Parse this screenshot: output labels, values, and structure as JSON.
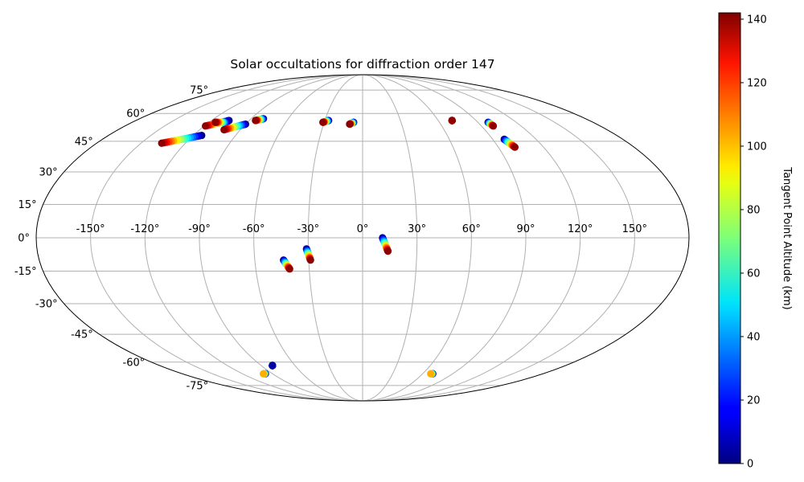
{
  "chart_data": {
    "type": "scatter",
    "projection": "mollweide",
    "title": "Solar occultations for diffraction order 147",
    "grid": true,
    "longitude_ticks": [
      "-150°",
      "-120°",
      "-90°",
      "-60°",
      "-30°",
      "0°",
      "30°",
      "60°",
      "90°",
      "120°",
      "150°"
    ],
    "latitude_ticks": [
      "75°",
      "60°",
      "45°",
      "30°",
      "15°",
      "0°",
      "-15°",
      "-30°",
      "-45°",
      "-60°",
      "-75°"
    ],
    "colorbar": {
      "label": "Tangent Point Altitude (km)",
      "range": [
        0,
        142
      ],
      "ticks": [
        "0",
        "20",
        "40",
        "60",
        "80",
        "100",
        "120",
        "140"
      ],
      "colormap": "jet",
      "position": "right"
    },
    "tracks": [
      {
        "lon": [
          -114,
          -136
        ],
        "lat": [
          48,
          44
        ],
        "alt": [
          0,
          140
        ]
      },
      {
        "lon": [
          -106,
          -119
        ],
        "lat": [
          56,
          53
        ],
        "alt": [
          0,
          140
        ]
      },
      {
        "lon": [
          -106,
          -115
        ],
        "lat": [
          55,
          55
        ],
        "alt": [
          0,
          140
        ]
      },
      {
        "lon": [
          -90,
          -102
        ],
        "lat": [
          54,
          51
        ],
        "alt": [
          0,
          140
        ]
      },
      {
        "lon": [
          -80,
          -85
        ],
        "lat": [
          57,
          56
        ],
        "alt": [
          0,
          140
        ]
      },
      {
        "lon": [
          -27,
          -31
        ],
        "lat": [
          56,
          55
        ],
        "alt": [
          0,
          140
        ]
      },
      {
        "lon": [
          -7,
          -10
        ],
        "lat": [
          55,
          54
        ],
        "alt": [
          0,
          140
        ]
      },
      {
        "lon": [
          71,
          71
        ],
        "lat": [
          56,
          56
        ],
        "alt": [
          135,
          140
        ]
      },
      {
        "lon": [
          98,
          99
        ],
        "lat": [
          55,
          53
        ],
        "alt": [
          0,
          140
        ]
      },
      {
        "lon": [
          98,
          101
        ],
        "lat": [
          46,
          42
        ],
        "alt": [
          0,
          140
        ]
      },
      {
        "lon": [
          -44,
          -41
        ],
        "lat": [
          -10,
          -14
        ],
        "alt": [
          0,
          140
        ]
      },
      {
        "lon": [
          -31,
          -29
        ],
        "lat": [
          -5,
          -10
        ],
        "alt": [
          0,
          140
        ]
      },
      {
        "lon": [
          11,
          14
        ],
        "lat": [
          0,
          -6
        ],
        "alt": [
          0,
          140
        ]
      },
      {
        "lon": [
          -80,
          -80
        ],
        "lat": [
          -62,
          -62
        ],
        "alt": [
          5,
          5
        ]
      },
      {
        "lon": [
          -97,
          -99
        ],
        "lat": [
          -67,
          -67
        ],
        "alt": [
          0,
          100
        ]
      },
      {
        "lon": [
          70,
          68
        ],
        "lat": [
          -67,
          -67
        ],
        "alt": [
          0,
          100
        ]
      }
    ]
  }
}
